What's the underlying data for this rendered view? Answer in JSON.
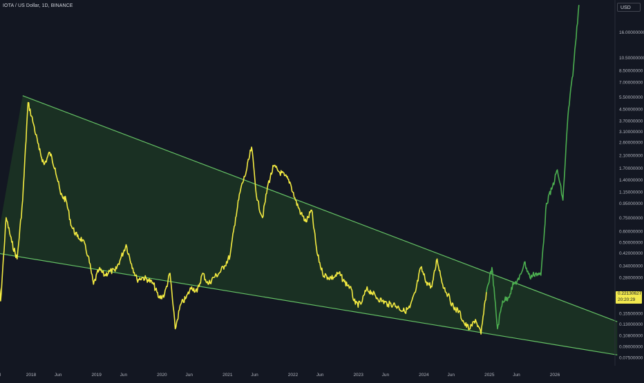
{
  "header": {
    "title": "IOTA / US Dollar, 1D, BINANCE"
  },
  "price_scale": {
    "currency": "USD"
  },
  "last_price": {
    "value": "0.22130627",
    "countdown": "20:20:29"
  },
  "colors": {
    "background": "#131722",
    "price_line": "#f5ec42",
    "projection_line": "#4caf50",
    "wedge_line": "#66c366",
    "wedge_fill": "#1e3a24",
    "axis_text": "#b2b5be"
  },
  "chart_data": {
    "type": "line",
    "scale": "log",
    "title": "IOTA / US Dollar, 1D, BINANCE",
    "y_ticks": [
      "16.00000000",
      "10.50000000",
      "8.50000000",
      "7.00000000",
      "5.50000000",
      "4.50000000",
      "3.70000000",
      "3.10000000",
      "2.60000000",
      "2.10000000",
      "1.70000000",
      "1.40000000",
      "1.15000000",
      "0.95000000",
      "0.75000000",
      "0.60000000",
      "0.50000000",
      "0.42000000",
      "0.34000000",
      "0.28000000",
      "0.15500000",
      "0.13000000",
      "0.10800000",
      "0.09000000",
      "0.07500000"
    ],
    "x_ticks": [
      "Jul",
      "2018",
      "Jun",
      "2019",
      "Jun",
      "2020",
      "Jun",
      "2021",
      "Jun",
      "2022",
      "Jun",
      "2023",
      "Jun",
      "2024",
      "Jun",
      "2025",
      "Jun",
      "2026"
    ],
    "series": [
      {
        "name": "",
        "style": "yellow",
        "x": [
          "2017-06",
          "2017-07",
          "2017-08",
          "2017-09",
          "2017-10",
          "2017-11",
          "2017-12",
          "2018-01",
          "2018-02",
          "2018-03",
          "2018-04",
          "2018-05",
          "2018-06",
          "2018-07",
          "2018-08",
          "2018-09",
          "2018-10",
          "2018-11",
          "2018-12",
          "2019-01",
          "2019-02",
          "2019-03",
          "2019-04",
          "2019-05",
          "2019-06",
          "2019-07",
          "2019-08",
          "2019-09",
          "2019-10",
          "2019-11",
          "2019-12",
          "2020-01",
          "2020-02",
          "2020-03",
          "2020-04",
          "2020-05",
          "2020-06",
          "2020-07",
          "2020-08",
          "2020-09",
          "2020-10",
          "2020-11",
          "2020-12",
          "2021-01",
          "2021-02",
          "2021-03",
          "2021-04",
          "2021-05",
          "2021-06",
          "2021-07",
          "2021-08",
          "2021-09",
          "2021-10",
          "2021-11",
          "2021-12",
          "2022-01",
          "2022-02",
          "2022-03",
          "2022-04",
          "2022-05",
          "2022-06",
          "2022-07",
          "2022-08",
          "2022-09",
          "2022-10",
          "2022-11",
          "2022-12",
          "2023-01",
          "2023-02",
          "2023-03",
          "2023-04",
          "2023-05",
          "2023-06",
          "2023-07",
          "2023-08",
          "2023-09",
          "2023-10",
          "2023-11",
          "2023-12",
          "2024-01",
          "2024-02",
          "2024-03",
          "2024-04",
          "2024-05",
          "2024-06",
          "2024-07",
          "2024-08",
          "2024-09",
          "2024-10",
          "2024-11",
          "2024-12"
        ],
        "y": [
          0.5,
          0.19,
          0.75,
          0.5,
          0.38,
          1.0,
          5.0,
          3.5,
          2.3,
          1.8,
          2.2,
          1.7,
          1.1,
          1.0,
          0.65,
          0.55,
          0.52,
          0.4,
          0.25,
          0.32,
          0.29,
          0.31,
          0.31,
          0.38,
          0.48,
          0.35,
          0.27,
          0.28,
          0.27,
          0.25,
          0.2,
          0.21,
          0.3,
          0.12,
          0.18,
          0.2,
          0.24,
          0.22,
          0.3,
          0.25,
          0.28,
          0.3,
          0.34,
          0.4,
          0.75,
          1.2,
          1.6,
          2.4,
          1.0,
          0.75,
          1.3,
          1.75,
          1.6,
          1.5,
          1.35,
          1.0,
          0.8,
          0.7,
          0.85,
          0.42,
          0.3,
          0.28,
          0.28,
          0.3,
          0.26,
          0.24,
          0.18,
          0.18,
          0.23,
          0.22,
          0.2,
          0.19,
          0.18,
          0.18,
          0.17,
          0.16,
          0.17,
          0.22,
          0.33,
          0.26,
          0.24,
          0.38,
          0.25,
          0.21,
          0.17,
          0.16,
          0.13,
          0.12,
          0.14,
          0.11,
          0.22
        ]
      },
      {
        "name": "",
        "style": "green",
        "x": [
          "2024-12",
          "2025-01",
          "2025-02",
          "2025-03",
          "2025-04",
          "2025-05",
          "2025-06",
          "2025-07",
          "2025-08",
          "2025-09",
          "2025-10",
          "2025-11",
          "2025-12",
          "2026-01",
          "2026-02",
          "2026-03",
          "2026-04",
          "2026-05"
        ],
        "y": [
          0.22,
          0.33,
          0.12,
          0.19,
          0.2,
          0.25,
          0.27,
          0.36,
          0.28,
          0.3,
          0.29,
          0.95,
          1.2,
          1.65,
          1.0,
          4.0,
          9.0,
          25
        ]
      }
    ],
    "wedge": {
      "upper": {
        "x": [
          "2017-11",
          "2026-12"
        ],
        "y": [
          5.6,
          0.135
        ]
      },
      "lower": {
        "x": [
          "2017-06",
          "2026-12"
        ],
        "y": [
          0.42,
          0.078
        ]
      }
    }
  }
}
